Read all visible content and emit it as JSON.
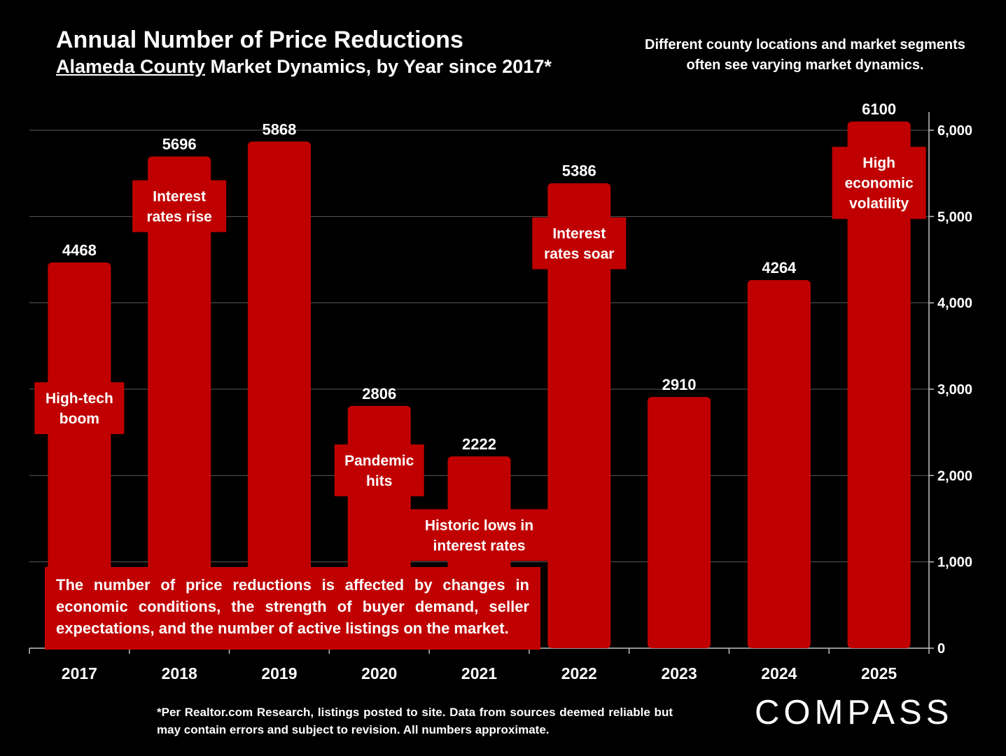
{
  "header": {
    "title": "Annual Number of Price Reductions",
    "subtitle_link": "Alameda County",
    "subtitle_rest": " Market Dynamics, by Year since 2017*",
    "side_note": "Different county locations and market segments often see varying market dynamics."
  },
  "chart_data": {
    "type": "bar",
    "categories": [
      "2017",
      "2018",
      "2019",
      "2020",
      "2021",
      "2022",
      "2023",
      "2024",
      "2025"
    ],
    "values": [
      4468,
      5696,
      5868,
      2806,
      2222,
      5386,
      2910,
      4264,
      6100
    ],
    "data_labels": [
      "4468",
      "5696",
      "5868",
      "2806",
      "2222",
      "5386",
      "2910",
      "4264",
      "6100"
    ],
    "y_ticks": [
      0,
      1000,
      2000,
      3000,
      4000,
      5000,
      6000
    ],
    "y_tick_labels": [
      "0",
      "1,000",
      "2,000",
      "3,000",
      "4,000",
      "5,000",
      "6,000"
    ],
    "ylim": [
      0,
      6000
    ],
    "y_axis_side": "right",
    "grid": true,
    "bar_color": "#c00000",
    "annotations": [
      {
        "category": "2017",
        "lines": [
          "High-tech",
          "boom"
        ],
        "at_value": 2780
      },
      {
        "category": "2018",
        "lines": [
          "Interest",
          "rates rise"
        ],
        "at_value": 5120
      },
      {
        "category": "2020",
        "lines": [
          "Pandemic",
          "hits"
        ],
        "at_value": 2060
      },
      {
        "category": "2021",
        "lines": [
          "Historic lows in",
          "interest rates"
        ],
        "at_value": 1310
      },
      {
        "category": "2022",
        "lines": [
          "Interest",
          "rates soar"
        ],
        "at_value": 4690
      },
      {
        "category": "2025",
        "lines": [
          "High",
          "economic",
          "volatility"
        ],
        "at_value": 5390
      }
    ]
  },
  "bottom_note": "The number of price reductions is affected by changes in economic conditions, the strength of buyer demand, seller expectations, and the number of active listings on the market.",
  "footnote": "*Per Realtor.com Research, listings posted to site. Data from sources deemed reliable but may contain errors and subject to revision. All numbers approximate.",
  "logo": "COMPASS"
}
